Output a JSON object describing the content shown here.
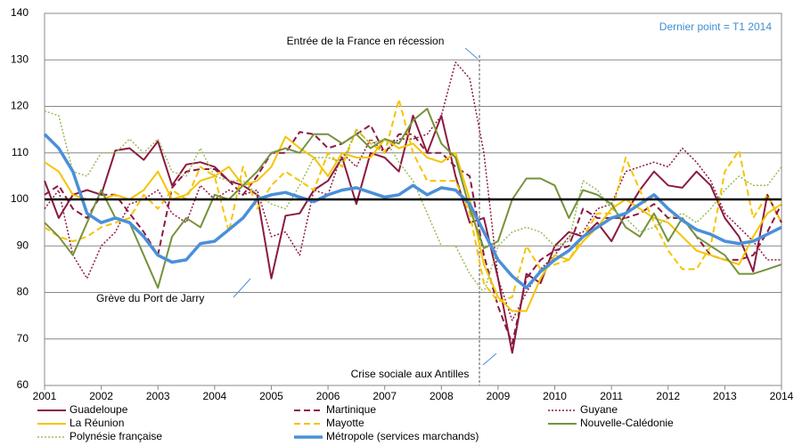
{
  "chart_data": {
    "type": "line",
    "annotations": [
      "Entrée de la France en récession",
      "Grève du Port de Jarry",
      "Crise sociale aux Antilles"
    ],
    "note": "Dernier point = T1 2014",
    "reference_line": 100,
    "x": [
      2001,
      2001.25,
      2001.5,
      2001.75,
      2002,
      2002.25,
      2002.5,
      2002.75,
      2003,
      2003.25,
      2003.5,
      2003.75,
      2004,
      2004.25,
      2004.5,
      2004.75,
      2005,
      2005.25,
      2005.5,
      2005.75,
      2006,
      2006.25,
      2006.5,
      2006.75,
      2007,
      2007.25,
      2007.5,
      2007.75,
      2008,
      2008.25,
      2008.5,
      2008.75,
      2009,
      2009.25,
      2009.5,
      2009.75,
      2010,
      2010.25,
      2010.5,
      2010.75,
      2011,
      2011.25,
      2011.5,
      2011.75,
      2012,
      2012.25,
      2012.5,
      2012.75,
      2013,
      2013.25,
      2013.5,
      2013.75,
      2014
    ],
    "xlim": [
      2001,
      2014
    ],
    "xticks": [
      2001,
      2002,
      2003,
      2004,
      2005,
      2006,
      2007,
      2008,
      2009,
      2010,
      2011,
      2012,
      2013,
      2014
    ],
    "ylim": [
      60,
      140
    ],
    "yticks": [
      60,
      70,
      80,
      90,
      100,
      110,
      120,
      130,
      140
    ],
    "grid": true,
    "series": [
      {
        "name": "Guadeloupe",
        "color": "#8b1a3f",
        "dash": "solid",
        "width": 2,
        "values": [
          104,
          96,
          101,
          102,
          101,
          110.5,
          111,
          108.5,
          112.5,
          103,
          107.5,
          108,
          107,
          104,
          103,
          101,
          83,
          96.5,
          97,
          102,
          104,
          109,
          99,
          110,
          109,
          106,
          118,
          110,
          118,
          105,
          95,
          96,
          83,
          67,
          84,
          82,
          90,
          93,
          92,
          95,
          91,
          97,
          102,
          106,
          103,
          102.5,
          106,
          103,
          96,
          92,
          84.5,
          101,
          95
        ]
      },
      {
        "name": "Martinique",
        "color": "#8b1a3f",
        "dash": "dashed",
        "width": 2,
        "values": [
          101,
          103,
          98,
          96,
          101,
          101,
          97,
          93,
          88,
          102.5,
          106,
          106.5,
          106.5,
          104,
          101,
          105,
          110,
          110,
          114.5,
          114,
          111,
          112,
          114,
          116,
          110,
          114,
          114,
          110,
          110,
          107,
          105,
          88,
          77,
          69,
          83,
          87,
          89,
          90,
          98,
          96,
          96,
          96,
          97,
          99,
          96,
          96,
          92,
          88,
          87,
          87,
          88,
          93,
          99
        ]
      },
      {
        "name": "Guyane",
        "color": "#8b1a3f",
        "dash": "dotted",
        "width": 1.5,
        "values": [
          98,
          102,
          88,
          83,
          90,
          93,
          99,
          100,
          102,
          97,
          95,
          103,
          100,
          102,
          101,
          102,
          92,
          93,
          88,
          102,
          101,
          110,
          107,
          113,
          110,
          113,
          113,
          114,
          118,
          129.5,
          126,
          110,
          83,
          74,
          80,
          85,
          88,
          92,
          93,
          98,
          99,
          106,
          107,
          108,
          107,
          111,
          108,
          104,
          97,
          94,
          91,
          87,
          87
        ]
      },
      {
        "name": "La Réunion",
        "color": "#f5c400",
        "dash": "solid",
        "width": 2,
        "values": [
          108,
          106,
          101,
          100,
          100,
          101,
          100,
          102,
          106,
          100,
          101,
          104,
          105,
          107,
          103,
          104,
          107,
          113.5,
          111,
          109,
          105,
          110,
          109,
          109,
          113,
          111,
          112,
          109,
          108,
          110,
          100,
          86,
          79,
          76,
          76,
          83,
          88,
          87,
          91,
          94,
          98,
          100,
          98,
          96,
          95,
          92,
          89,
          88,
          87,
          86,
          92,
          97,
          99
        ]
      },
      {
        "name": "Mayotte",
        "color": "#f5c400",
        "dash": "dashed",
        "width": 2,
        "values": [
          94,
          92,
          91,
          92,
          94,
          95,
          96,
          101,
          98,
          102,
          100,
          107,
          105,
          93,
          107,
          98,
          103,
          106,
          104,
          102,
          110,
          107,
          115,
          112,
          110,
          121.5,
          110,
          104,
          104,
          104,
          97,
          82,
          78,
          79,
          90,
          85,
          86,
          87,
          92,
          97,
          97,
          109,
          102,
          95,
          89,
          85,
          85,
          90,
          106,
          110.5,
          96,
          101,
          95
        ]
      },
      {
        "name": "Nouvelle-Calédonie",
        "color": "#76923c",
        "dash": "solid",
        "width": 2,
        "values": [
          95,
          92,
          88,
          95,
          102,
          96,
          95,
          88,
          81,
          92,
          96,
          94,
          101,
          100,
          103,
          106,
          110,
          111,
          110,
          114,
          114,
          112,
          114,
          111,
          113,
          112,
          117,
          119.5,
          112,
          109,
          98,
          89.5,
          91,
          100,
          104.5,
          104.5,
          103,
          96,
          102,
          101,
          99,
          94,
          92,
          97,
          91,
          96,
          92,
          90,
          88,
          84,
          84,
          85,
          86
        ]
      },
      {
        "name": "Polynésie française",
        "color": "#9bbb59",
        "dash": "dotted",
        "width": 1.5,
        "values": [
          119,
          118,
          106,
          105,
          110,
          110,
          113,
          110,
          113,
          106,
          105,
          111,
          105,
          104,
          104,
          101,
          99,
          98,
          103,
          109,
          109,
          108,
          115,
          112,
          113,
          108,
          104,
          97,
          90,
          90,
          84,
          80,
          90,
          93,
          94,
          93,
          90,
          91,
          104,
          102,
          98,
          96,
          93,
          94,
          96,
          97,
          95,
          98,
          102,
          105,
          103,
          103,
          107
        ]
      },
      {
        "name": "Métropole (services marchands)",
        "color": "#4a90d9",
        "dash": "solid",
        "width": 3.5,
        "values": [
          114,
          111,
          106,
          97,
          95,
          96,
          95,
          92,
          88,
          86.5,
          87,
          90.5,
          91,
          93.5,
          96,
          100,
          101,
          101.5,
          100.5,
          99.5,
          101,
          102,
          102.5,
          101.5,
          100.5,
          101,
          103,
          101,
          102.5,
          102,
          99,
          93,
          87,
          83.5,
          81,
          84.5,
          87,
          89,
          92,
          94,
          96,
          97,
          99,
          101,
          98,
          95.5,
          93.5,
          92.5,
          91,
          90.5,
          91,
          92.5,
          94
        ]
      }
    ]
  }
}
